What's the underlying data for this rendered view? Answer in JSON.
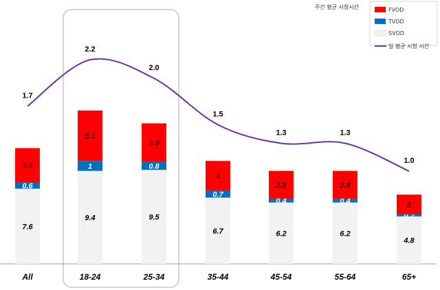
{
  "chart_data": {
    "type": "bar",
    "stacked": true,
    "categories": [
      "All",
      "18-24",
      "25-34",
      "35-44",
      "45-54",
      "55-64",
      "65+"
    ],
    "series": [
      {
        "name": "SVOD",
        "values": [
          7.6,
          9.4,
          9.5,
          6.7,
          6.2,
          6.2,
          4.8
        ],
        "color": "#f2f2f2"
      },
      {
        "name": "TVOD",
        "values": [
          0.6,
          1,
          0.8,
          0.7,
          0.4,
          0.4,
          0.2
        ],
        "color": "#0070c0"
      },
      {
        "name": "FVOD",
        "values": [
          3.5,
          5.1,
          3.9,
          3,
          2.8,
          2.8,
          2
        ],
        "color": "#ff0000"
      }
    ],
    "line_series": {
      "name": "일 평균 시청 시간",
      "values": [
        1.7,
        2.2,
        2.0,
        1.5,
        1.3,
        1.3,
        1.0
      ],
      "labels": [
        "1.7",
        "2.2",
        "2.0",
        "1.5",
        "1.3",
        "1.3",
        "1.0"
      ],
      "color": "#7030a0"
    },
    "legend_title": "주간 평균 시청시간",
    "legend_position": "top-right",
    "highlighted_categories": [
      "18-24",
      "25-34"
    ],
    "bar_ylim": [
      0,
      17.5
    ],
    "line_ylim": [
      0,
      2.8
    ]
  }
}
